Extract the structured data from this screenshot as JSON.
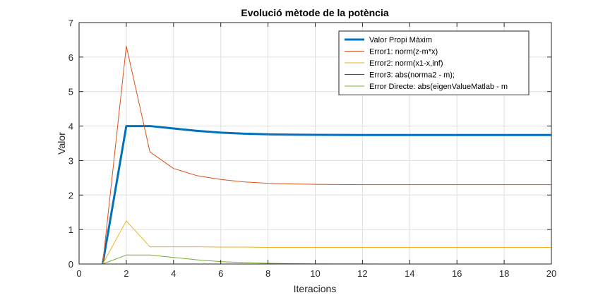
{
  "chart_data": {
    "type": "line",
    "title": "Evolució mètode de la potència",
    "xlabel": "Iteracions",
    "ylabel": "Valor",
    "xlim": [
      0,
      20
    ],
    "ylim": [
      0,
      7
    ],
    "xticks": [
      0,
      2,
      4,
      6,
      8,
      10,
      12,
      14,
      16,
      18,
      20
    ],
    "yticks": [
      0,
      1,
      2,
      3,
      4,
      5,
      6,
      7
    ],
    "grid": true,
    "legend_position": "top-right",
    "x": [
      1,
      2,
      3,
      4,
      5,
      6,
      7,
      8,
      9,
      10,
      11,
      12,
      13,
      14,
      15,
      16,
      17,
      18,
      19,
      20
    ],
    "series": [
      {
        "name": "Valor Propi Màxim",
        "color": "#0072BD",
        "width": "thick",
        "values": [
          0,
          4.0,
          4.0,
          3.93,
          3.86,
          3.81,
          3.78,
          3.76,
          3.75,
          3.745,
          3.742,
          3.741,
          3.74,
          3.74,
          3.74,
          3.74,
          3.74,
          3.74,
          3.74,
          3.74
        ]
      },
      {
        "name": "Error1: norm(z-m*x)",
        "color": "#D95319",
        "width": "thin",
        "values": [
          0,
          6.32,
          3.25,
          2.77,
          2.56,
          2.45,
          2.38,
          2.34,
          2.32,
          2.31,
          2.305,
          2.3,
          2.3,
          2.3,
          2.3,
          2.3,
          2.3,
          2.3,
          2.3,
          2.3
        ]
      },
      {
        "name": "Error2: norm(x1-x,inf)",
        "color": "#EDB120",
        "width": "thin",
        "values": [
          0,
          1.25,
          0.5,
          0.5,
          0.5,
          0.49,
          0.49,
          0.48,
          0.48,
          0.48,
          0.48,
          0.48,
          0.48,
          0.48,
          0.48,
          0.48,
          0.48,
          0.48,
          0.48,
          0.48
        ]
      },
      {
        "name": "Error3: abs(norma2 - m);",
        "color": "#7E2F8E",
        "width": "thin",
        "values": [
          0,
          0,
          0,
          0,
          0,
          0,
          0,
          0,
          0,
          0,
          0,
          0,
          0,
          0,
          0,
          0,
          0,
          0,
          0,
          0
        ]
      },
      {
        "name": "Error Directe: abs(eigenValueMatlab - m",
        "color": "#77AC30",
        "width": "thin",
        "values": [
          0,
          0.26,
          0.26,
          0.19,
          0.12,
          0.07,
          0.04,
          0.02,
          0.01,
          0.005,
          0.003,
          0.002,
          0.001,
          0,
          0,
          0,
          0,
          0,
          0,
          0
        ]
      }
    ]
  }
}
